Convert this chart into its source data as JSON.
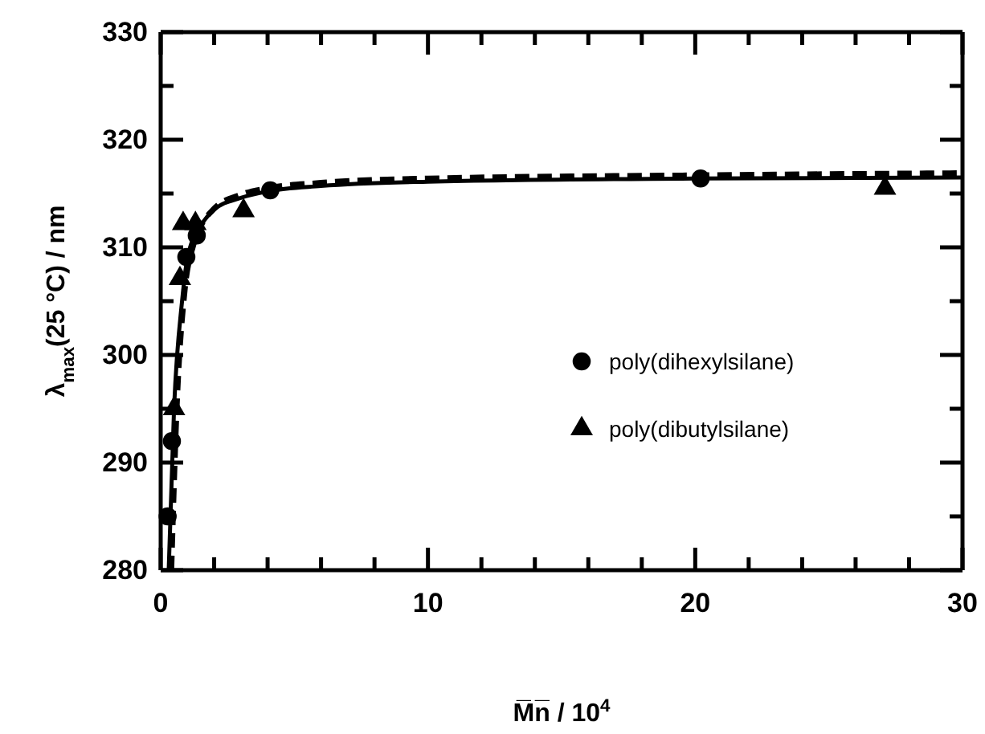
{
  "chart_data": {
    "type": "scatter",
    "xlabel": "M̅n̅ / 10$^{4}$",
    "ylabel": "λ$_{max}$(25 °C) / nm",
    "xlim": [
      0,
      30
    ],
    "ylim": [
      280,
      330
    ],
    "xticks": [
      0,
      {
        "value": 2,
        "label": null
      },
      {
        "value": 4,
        "label": null
      },
      {
        "value": 6,
        "label": null
      },
      {
        "value": 8,
        "label": null
      },
      10,
      {
        "value": 12,
        "label": null
      },
      {
        "value": 14,
        "label": null
      },
      {
        "value": 16,
        "label": null
      },
      {
        "value": 18,
        "label": null
      },
      20,
      {
        "value": 22,
        "label": null
      },
      {
        "value": 24,
        "label": null
      },
      {
        "value": 26,
        "label": null
      },
      {
        "value": 28,
        "label": null
      },
      30
    ],
    "yticks": [
      280,
      {
        "value": 285,
        "label": null
      },
      290,
      {
        "value": 295,
        "label": null
      },
      300,
      {
        "value": 305,
        "label": null
      },
      310,
      {
        "value": 315,
        "label": null
      },
      320,
      {
        "value": 325,
        "label": null
      },
      330
    ],
    "grid": false,
    "legend": "bottom right",
    "series": [
      {
        "name": "poly(dihexylsilane)",
        "marker": "circle",
        "color": "#000000",
        "x": [
          0.26,
          0.42,
          0.96,
          1.35,
          4.1,
          20.2
        ],
        "values": [
          285.0,
          292.0,
          309.1,
          311.1,
          315.3,
          316.4
        ]
      },
      {
        "name": "poly(dibutylsilane)",
        "marker": "triangle",
        "color": "#000000",
        "x": [
          0.5,
          0.72,
          0.84,
          1.3,
          3.1,
          27.1
        ],
        "values": [
          295.0,
          307.1,
          312.2,
          312.2,
          313.4,
          315.5
        ]
      },
      {
        "type": "line",
        "line_style": "solid",
        "color": "#000000",
        "x": [
          0.3,
          0.5,
          0.8,
          1,
          1.5,
          2,
          3,
          4,
          6,
          10,
          20,
          30
        ],
        "values": [
          280,
          295,
          305,
          309,
          312,
          313.5,
          314.6,
          315.2,
          315.7,
          316.1,
          316.4,
          316.5
        ]
      },
      {
        "type": "line",
        "line_style": "dashed",
        "color": "#000000",
        "x": [
          0.4,
          0.6,
          0.9,
          1.2,
          2,
          3,
          4,
          6,
          10,
          20,
          30
        ],
        "values": [
          280,
          295,
          306,
          310,
          313.6,
          314.9,
          315.5,
          316,
          316.4,
          316.7,
          316.9
        ]
      }
    ]
  }
}
